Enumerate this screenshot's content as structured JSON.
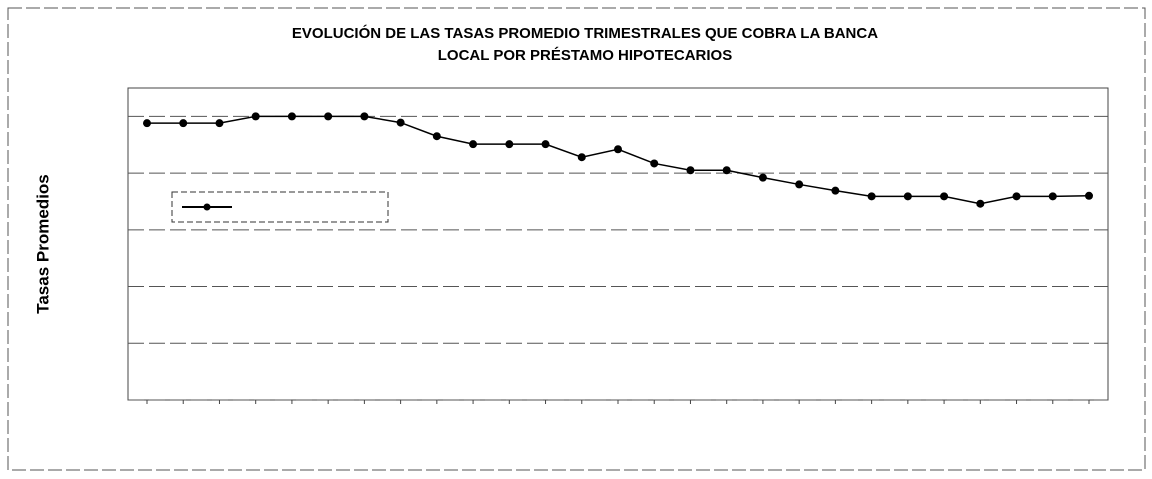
{
  "chart_data": {
    "type": "line",
    "title": [
      "EVOLUCIÓN DE LAS TASAS PROMEDIO TRIMESTRALES QUE COBRA LA BANCA",
      "LOCAL POR PRÉSTAMO HIPOTECARIOS"
    ],
    "y_label": "Tasas Promedios",
    "categories": [
      null,
      null,
      null,
      null,
      null,
      null,
      null,
      null,
      null,
      null,
      null,
      null,
      null,
      null,
      null,
      null,
      null,
      null,
      null,
      null,
      null,
      null,
      null,
      null,
      null,
      null,
      null
    ],
    "series": [
      {
        "color": "#000000",
        "values": [
          4.88,
          4.88,
          4.88,
          5.0,
          5.0,
          5.0,
          5.0,
          4.89,
          4.65,
          4.51,
          4.51,
          4.51,
          4.28,
          4.42,
          4.17,
          4.05,
          4.05,
          3.92,
          3.8,
          3.69,
          3.59,
          3.59,
          3.59,
          3.46,
          3.59,
          3.59,
          3.6
        ]
      }
    ],
    "ylim": [
      0,
      5.5
    ],
    "yticks": [
      0,
      1,
      2,
      3,
      4,
      5
    ],
    "grid": true,
    "legend": "left"
  }
}
